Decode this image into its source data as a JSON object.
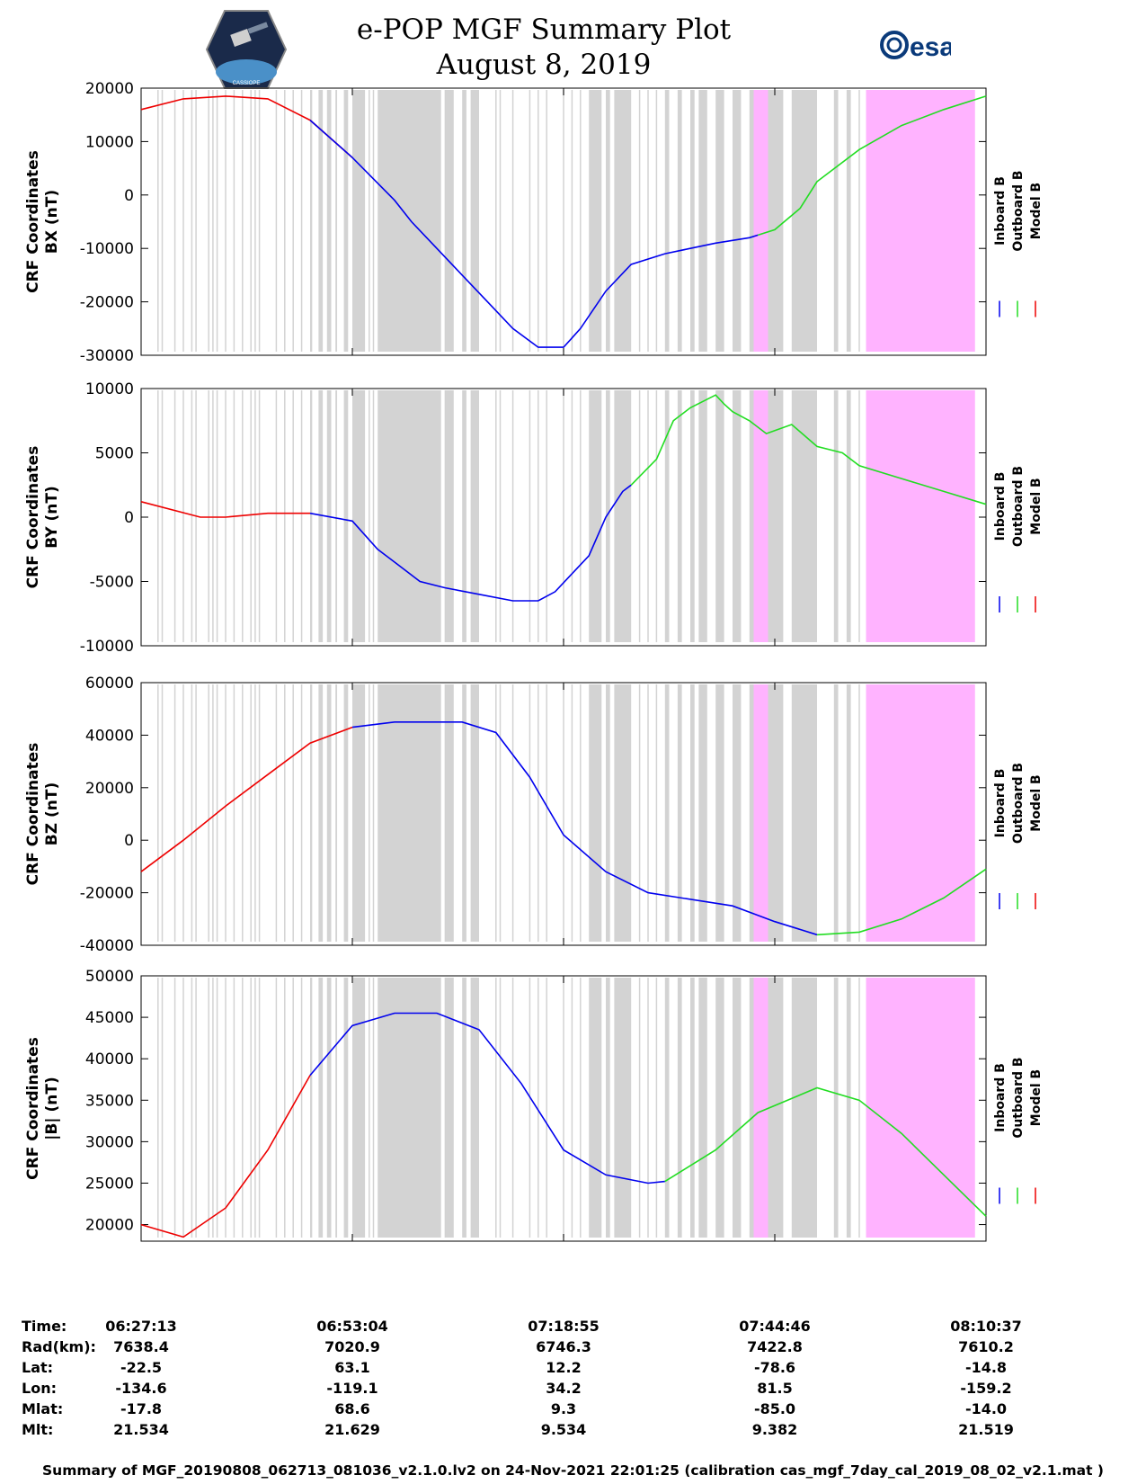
{
  "header": {
    "title_line1": "e-POP MGF Summary Plot",
    "title_line2": "August 8, 2019",
    "left_logo_text": "CASSIOPE",
    "right_logo_text": "esa"
  },
  "colors": {
    "inboard": "#0000ee",
    "outboard": "#22dd22",
    "model": "#ee0000",
    "gap_gray": "#d3d3d3",
    "highlight_pink": "#ffb3ff"
  },
  "chart_data": [
    {
      "type": "line",
      "ylabel_line1": "CRF Coordinates",
      "ylabel_line2": "BX (nT)",
      "ylim": [
        -30000,
        20000
      ],
      "yticks": [
        20000,
        10000,
        0,
        -10000,
        -20000,
        -30000
      ],
      "legend": [
        "Inboard B",
        "Outboard B",
        "Model B"
      ],
      "series": [
        {
          "name": "Model B",
          "x": [
            0,
            0.05,
            0.1,
            0.15,
            0.2,
            0.25
          ],
          "values": [
            16000,
            18000,
            18500,
            18000,
            14000,
            7000
          ]
        },
        {
          "name": "Inboard B",
          "x": [
            0.2,
            0.25,
            0.3,
            0.32,
            0.35,
            0.38,
            0.41,
            0.44,
            0.47,
            0.5,
            0.52,
            0.55,
            0.58,
            0.62,
            0.65,
            0.68,
            0.7,
            0.72,
            0.73
          ],
          "values": [
            14000,
            7000,
            -1000,
            -5000,
            -10000,
            -15000,
            -20000,
            -25000,
            -28500,
            -28500,
            -25000,
            -18000,
            -13000,
            -11000,
            -10000,
            -9000,
            -8500,
            -8000,
            -7500
          ]
        },
        {
          "name": "Outboard B",
          "x": [
            0.73,
            0.75,
            0.78,
            0.8,
            0.85,
            0.9,
            0.95,
            1.0
          ],
          "values": [
            -7500,
            -6500,
            -2500,
            2500,
            8500,
            13000,
            16000,
            18500
          ]
        }
      ]
    },
    {
      "type": "line",
      "ylabel_line1": "CRF Coordinates",
      "ylabel_line2": "BY (nT)",
      "ylim": [
        -10000,
        10000
      ],
      "yticks": [
        10000,
        5000,
        0,
        -5000,
        -10000
      ],
      "legend": [
        "Inboard B",
        "Outboard B",
        "Model B"
      ],
      "series": [
        {
          "name": "Model B",
          "x": [
            0,
            0.07,
            0.1,
            0.15,
            0.2
          ],
          "values": [
            1200,
            0,
            0,
            300,
            300
          ]
        },
        {
          "name": "Inboard B",
          "x": [
            0.2,
            0.25,
            0.28,
            0.3,
            0.33,
            0.36,
            0.4,
            0.44,
            0.47,
            0.49,
            0.53,
            0.55,
            0.57,
            0.58
          ],
          "values": [
            300,
            -300,
            -2500,
            -3500,
            -5000,
            -5500,
            -6000,
            -6500,
            -6500,
            -5800,
            -3000,
            0,
            2000,
            2500
          ]
        },
        {
          "name": "Outboard B",
          "x": [
            0.58,
            0.61,
            0.63,
            0.65,
            0.68,
            0.69,
            0.7,
            0.72,
            0.74,
            0.77,
            0.8,
            0.83,
            0.85,
            0.9,
            0.95,
            1.0
          ],
          "values": [
            2500,
            4500,
            7500,
            8500,
            9500,
            8800,
            8200,
            7500,
            6500,
            7200,
            5500,
            5000,
            4000,
            3000,
            2000,
            1000
          ]
        }
      ]
    },
    {
      "type": "line",
      "ylabel_line1": "CRF Coordinates",
      "ylabel_line2": "BZ (nT)",
      "ylim": [
        -40000,
        60000
      ],
      "yticks": [
        60000,
        40000,
        20000,
        0,
        -20000,
        -40000
      ],
      "legend": [
        "Inboard B",
        "Outboard B",
        "Model B"
      ],
      "series": [
        {
          "name": "Model B",
          "x": [
            0,
            0.05,
            0.1,
            0.15,
            0.2,
            0.25
          ],
          "values": [
            -12000,
            0,
            13000,
            25000,
            37000,
            43000
          ]
        },
        {
          "name": "Inboard B",
          "x": [
            0.25,
            0.3,
            0.38,
            0.42,
            0.46,
            0.5,
            0.55,
            0.6,
            0.7,
            0.75,
            0.8
          ],
          "values": [
            43000,
            45000,
            45000,
            41000,
            24000,
            2000,
            -12000,
            -20000,
            -25000,
            -31000,
            -36000
          ]
        },
        {
          "name": "Outboard B",
          "x": [
            0.8,
            0.85,
            0.9,
            0.95,
            1.0
          ],
          "values": [
            -36000,
            -35000,
            -30000,
            -22000,
            -11000
          ]
        }
      ]
    },
    {
      "type": "line",
      "ylabel_line1": "CRF Coordinates",
      "ylabel_line2": "|B| (nT)",
      "ylim": [
        18000,
        50000
      ],
      "yticks": [
        50000,
        45000,
        40000,
        35000,
        30000,
        25000,
        20000
      ],
      "legend": [
        "Inboard B",
        "Outboard B",
        "Model B"
      ],
      "series": [
        {
          "name": "Model B",
          "x": [
            0,
            0.05,
            0.1,
            0.15,
            0.2
          ],
          "values": [
            20000,
            18500,
            22000,
            29000,
            38000
          ]
        },
        {
          "name": "Inboard B",
          "x": [
            0.2,
            0.25,
            0.3,
            0.35,
            0.4,
            0.45,
            0.5,
            0.55,
            0.6,
            0.62
          ],
          "values": [
            38000,
            44000,
            45500,
            45500,
            43500,
            37000,
            29000,
            26000,
            25000,
            25200
          ]
        },
        {
          "name": "Outboard B",
          "x": [
            0.62,
            0.68,
            0.73,
            0.8,
            0.85,
            0.9,
            0.95,
            1.0
          ],
          "values": [
            25200,
            29000,
            33500,
            36500,
            35000,
            31000,
            26000,
            21000
          ]
        }
      ]
    }
  ],
  "table": {
    "labels": [
      "Time:",
      "Rad(km):",
      "Lat:",
      "Lon:",
      "Mlat:",
      "Mlt:"
    ],
    "columns": [
      [
        "06:27:13",
        "7638.4",
        "-22.5",
        "-134.6",
        "-17.8",
        "21.534"
      ],
      [
        "06:53:04",
        "7020.9",
        "63.1",
        "-119.1",
        "68.6",
        "21.629"
      ],
      [
        "07:18:55",
        "6746.3",
        "12.2",
        "34.2",
        "9.3",
        "9.534"
      ],
      [
        "07:44:46",
        "7422.8",
        "-78.6",
        "81.5",
        "-85.0",
        "9.382"
      ],
      [
        "08:10:37",
        "7610.2",
        "-14.8",
        "-159.2",
        "-14.0",
        "21.519"
      ]
    ]
  },
  "footer_text": "Summary of MGF_20190808_062713_081036_v2.1.0.lv2 on 24-Nov-2021 22:01:25 (calibration cas_mgf_7day_cal_2019_08_02_v2.1.mat )"
}
